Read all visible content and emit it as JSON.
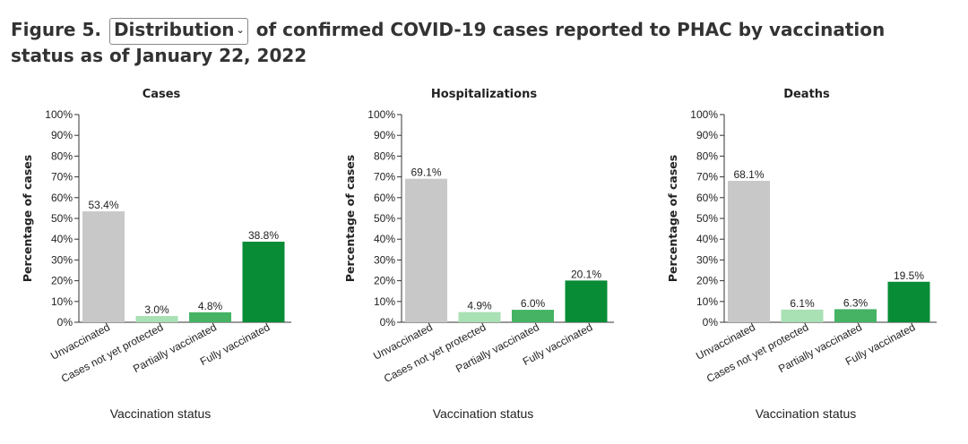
{
  "header": {
    "prefix": "Figure 5.",
    "select_value": "Distribution",
    "suffix": "of confirmed COVID-19 cases reported to PHAC by vaccination status as of January 22, 2022"
  },
  "colors": {
    "Unvaccinated": "#c8c8c8",
    "Cases not yet protected": "#a9e0b4",
    "Partially vaccinated": "#45b363",
    "Fully vaccinated": "#088c36"
  },
  "chart_data": [
    {
      "type": "bar",
      "title": "Cases",
      "xlabel": "Vaccination status",
      "ylabel": "Percentage of cases",
      "categories": [
        "Unvaccinated",
        "Cases not yet protected",
        "Partially vaccinated",
        "Fully vaccinated"
      ],
      "values": [
        53.4,
        3.0,
        4.8,
        38.8
      ],
      "data_labels": [
        "53.4%",
        "3.0%",
        "4.8%",
        "38.8%"
      ],
      "ylim": [
        0,
        100
      ],
      "yticks": [
        "0%",
        "10%",
        "20%",
        "30%",
        "40%",
        "50%",
        "60%",
        "70%",
        "80%",
        "90%",
        "100%"
      ]
    },
    {
      "type": "bar",
      "title": "Hospitalizations",
      "xlabel": "Vaccination status",
      "ylabel": "Percentage of cases",
      "categories": [
        "Unvaccinated",
        "Cases not yet protected",
        "Partially vaccinated",
        "Fully vaccinated"
      ],
      "values": [
        69.1,
        4.9,
        6.0,
        20.1
      ],
      "data_labels": [
        "69.1%",
        "4.9%",
        "6.0%",
        "20.1%"
      ],
      "ylim": [
        0,
        100
      ],
      "yticks": [
        "0%",
        "10%",
        "20%",
        "30%",
        "40%",
        "50%",
        "60%",
        "70%",
        "80%",
        "90%",
        "100%"
      ]
    },
    {
      "type": "bar",
      "title": "Deaths",
      "xlabel": "Vaccination status",
      "ylabel": "Percentage of cases",
      "categories": [
        "Unvaccinated",
        "Cases not yet protected",
        "Partially vaccinated",
        "Fully vaccinated"
      ],
      "values": [
        68.1,
        6.1,
        6.3,
        19.5
      ],
      "data_labels": [
        "68.1%",
        "6.1%",
        "6.3%",
        "19.5%"
      ],
      "ylim": [
        0,
        100
      ],
      "yticks": [
        "0%",
        "10%",
        "20%",
        "30%",
        "40%",
        "50%",
        "60%",
        "70%",
        "80%",
        "90%",
        "100%"
      ]
    }
  ]
}
